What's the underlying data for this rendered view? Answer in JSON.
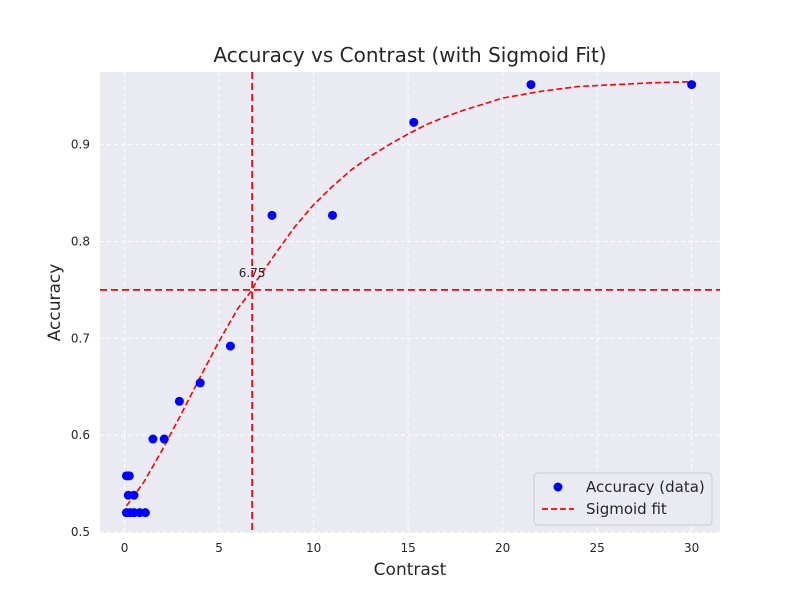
{
  "chart_data": {
    "type": "scatter",
    "title": "Accuracy vs Contrast (with Sigmoid Fit)",
    "xlabel": "Contrast",
    "ylabel": "Accuracy",
    "xlim": [
      -1.3,
      31.5
    ],
    "ylim": [
      0.499,
      0.975
    ],
    "xticks": [
      0,
      5,
      10,
      15,
      20,
      25,
      30
    ],
    "yticks": [
      0.5,
      0.6,
      0.7,
      0.8,
      0.9
    ],
    "grid": true,
    "legend_position": "lower-right",
    "series": [
      {
        "name": "Accuracy (data)",
        "kind": "scatter",
        "color": "#0000ff",
        "points": [
          [
            0.1,
            0.52
          ],
          [
            0.3,
            0.52
          ],
          [
            0.5,
            0.52
          ],
          [
            0.8,
            0.52
          ],
          [
            1.1,
            0.52
          ],
          [
            0.2,
            0.538
          ],
          [
            0.5,
            0.538
          ],
          [
            0.1,
            0.558
          ],
          [
            0.25,
            0.558
          ],
          [
            1.5,
            0.596
          ],
          [
            2.1,
            0.596
          ],
          [
            2.9,
            0.635
          ],
          [
            4.0,
            0.654
          ],
          [
            5.6,
            0.692
          ],
          [
            7.8,
            0.827
          ],
          [
            11.0,
            0.827
          ],
          [
            15.3,
            0.923
          ],
          [
            21.5,
            0.962
          ],
          [
            30.0,
            0.962
          ]
        ]
      },
      {
        "name": "Sigmoid fit",
        "kind": "line",
        "color": "#ff0000",
        "style": "dashed",
        "x": [
          0.1,
          1,
          2,
          3,
          4,
          5,
          6,
          6.75,
          7,
          8,
          9,
          10,
          11,
          12,
          13,
          14,
          15,
          16,
          17,
          18,
          19,
          20,
          22,
          24,
          26,
          28,
          30
        ],
        "y": [
          0.527,
          0.551,
          0.585,
          0.622,
          0.66,
          0.697,
          0.731,
          0.75,
          0.76,
          0.788,
          0.815,
          0.838,
          0.857,
          0.874,
          0.888,
          0.9,
          0.911,
          0.921,
          0.929,
          0.936,
          0.942,
          0.948,
          0.955,
          0.96,
          0.962,
          0.964,
          0.965
        ]
      }
    ],
    "reference_lines": [
      {
        "orientation": "vertical",
        "value": 6.75,
        "color": "#ff0000",
        "style": "dashed"
      },
      {
        "orientation": "horizontal",
        "value": 0.75,
        "color": "#ff0000",
        "style": "dashed"
      }
    ],
    "annotations": [
      {
        "text": "6.75",
        "x": 6.75,
        "y": 0.75
      }
    ]
  }
}
